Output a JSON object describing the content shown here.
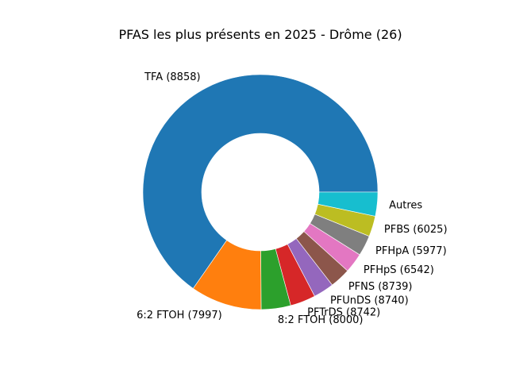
{
  "chart_data": {
    "type": "pie",
    "variant": "donut",
    "title": "PFAS les plus présents en 2025 - Drôme (26)",
    "labels": [
      "TFA (8858)",
      "6:2 FTOH (7997)",
      "8:2 FTOH (8000)",
      "PFTrDS (8742)",
      "PFUnDS (8740)",
      "PFNS (8739)",
      "PFHpS (6542)",
      "PFHpA (5977)",
      "PFBS (6025)",
      "Autres"
    ],
    "values": [
      69.3,
      10.4,
      4.3,
      3.7,
      3.0,
      3.0,
      2.9,
      3.0,
      3.0,
      3.5
    ],
    "colors": [
      "#1f77b4",
      "#ff7f0e",
      "#2ca02c",
      "#d62728",
      "#9467bd",
      "#8c564b",
      "#e377c2",
      "#7f7f7f",
      "#bcbd22",
      "#17becf"
    ],
    "start_angle_deg": 0,
    "direction": "counterclockwise",
    "legend": "none"
  }
}
